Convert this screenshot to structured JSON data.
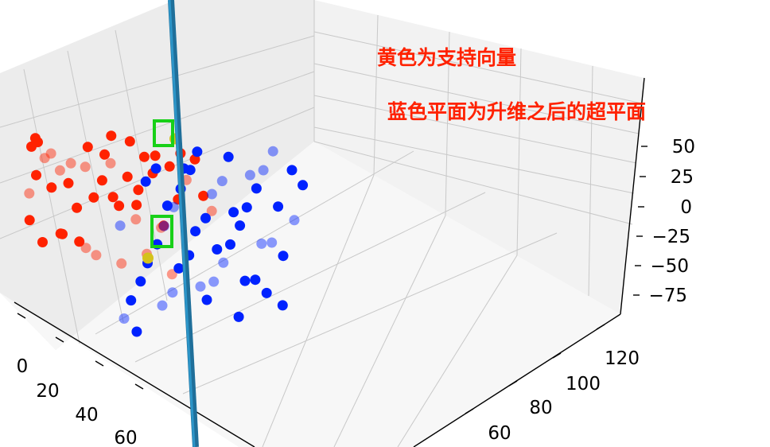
{
  "chart_data": {
    "type": "scatter",
    "projection": "3d",
    "grid": true,
    "annotations": [
      "黄色为支持向量",
      "蓝色平面为升维之后的超平面"
    ],
    "x_ticks": [
      "0",
      "20",
      "40",
      "60"
    ],
    "y_ticks": [
      "60",
      "80",
      "100",
      "120"
    ],
    "z_ticks": [
      "50",
      "25",
      "0",
      "−25",
      "−50",
      "−75"
    ],
    "series": [
      {
        "color": "#ff2200",
        "points": [
          [
            8,
            64,
            -10
          ],
          [
            9,
            66,
            5
          ],
          [
            10,
            63,
            -30
          ],
          [
            11,
            68,
            20
          ],
          [
            12,
            70,
            -5
          ],
          [
            13,
            62,
            35
          ],
          [
            14,
            72,
            10
          ],
          [
            15,
            65,
            -45
          ],
          [
            16,
            74,
            0
          ],
          [
            17,
            67,
            30
          ],
          [
            18,
            76,
            -20
          ],
          [
            19,
            61,
            45
          ],
          [
            20,
            78,
            15
          ],
          [
            21,
            69,
            -35
          ],
          [
            22,
            80,
            -10
          ],
          [
            23,
            71,
            25
          ],
          [
            24,
            82,
            5
          ],
          [
            25,
            73,
            -40
          ],
          [
            26,
            84,
            20
          ],
          [
            27,
            75,
            40
          ],
          [
            28,
            86,
            -15
          ],
          [
            29,
            77,
            -50
          ],
          [
            30,
            88,
            10
          ],
          [
            31,
            79,
            35
          ],
          [
            32,
            90,
            -25
          ],
          [
            33,
            81,
            0
          ],
          [
            34,
            92,
            28
          ],
          [
            35,
            83,
            -55
          ],
          [
            36,
            94,
            15
          ],
          [
            37,
            85,
            48
          ],
          [
            38,
            96,
            -30
          ],
          [
            39,
            87,
            8
          ],
          [
            40,
            98,
            22
          ],
          [
            41,
            89,
            -45
          ],
          [
            42,
            100,
            -5
          ],
          [
            43,
            91,
            38
          ],
          [
            44,
            102,
            12
          ],
          [
            45,
            93,
            -20
          ],
          [
            46,
            104,
            30
          ],
          [
            47,
            95,
            -60
          ],
          [
            48,
            106,
            0
          ],
          [
            49,
            97,
            42
          ],
          [
            50,
            108,
            -12
          ],
          [
            12,
            64,
            40
          ],
          [
            18,
            70,
            -38
          ],
          [
            24,
            76,
            -48
          ],
          [
            30,
            82,
            48
          ],
          [
            36,
            88,
            -8
          ]
        ]
      },
      {
        "color": "#0022ff",
        "points": [
          [
            60,
            70,
            -70
          ],
          [
            62,
            75,
            -40
          ],
          [
            64,
            80,
            -10
          ],
          [
            66,
            85,
            20
          ],
          [
            68,
            90,
            50
          ],
          [
            70,
            95,
            -60
          ],
          [
            72,
            100,
            -30
          ],
          [
            74,
            105,
            0
          ],
          [
            76,
            110,
            30
          ],
          [
            78,
            115,
            60
          ],
          [
            61,
            72,
            -55
          ],
          [
            63,
            77,
            -25
          ],
          [
            65,
            82,
            5
          ],
          [
            67,
            87,
            35
          ],
          [
            69,
            92,
            65
          ],
          [
            71,
            97,
            -45
          ],
          [
            73,
            102,
            -15
          ],
          [
            75,
            107,
            15
          ],
          [
            77,
            112,
            45
          ],
          [
            79,
            118,
            -70
          ],
          [
            60,
            78,
            40
          ],
          [
            62,
            83,
            -65
          ],
          [
            64,
            88,
            -35
          ],
          [
            66,
            93,
            -5
          ],
          [
            68,
            98,
            25
          ],
          [
            70,
            103,
            55
          ],
          [
            72,
            108,
            -50
          ],
          [
            74,
            113,
            -20
          ],
          [
            76,
            118,
            10
          ],
          [
            78,
            122,
            40
          ],
          [
            61,
            68,
            10
          ],
          [
            63,
            73,
            -80
          ],
          [
            65,
            79,
            55
          ],
          [
            67,
            84,
            -50
          ],
          [
            69,
            89,
            -20
          ],
          [
            71,
            94,
            10
          ],
          [
            73,
            99,
            40
          ],
          [
            75,
            104,
            -75
          ],
          [
            77,
            109,
            -45
          ],
          [
            79,
            114,
            -15
          ],
          [
            60,
            86,
            15
          ],
          [
            62,
            91,
            45
          ],
          [
            64,
            96,
            -55
          ],
          [
            66,
            101,
            -25
          ],
          [
            68,
            106,
            5
          ],
          [
            70,
            111,
            35
          ],
          [
            72,
            116,
            -65
          ],
          [
            74,
            121,
            -35
          ],
          [
            76,
            124,
            -5
          ],
          [
            78,
            126,
            25
          ]
        ]
      },
      {
        "color": "#d4c21a",
        "points": [
          [
            40,
            100,
            44
          ],
          [
            40,
            90,
            -50
          ]
        ]
      }
    ]
  }
}
